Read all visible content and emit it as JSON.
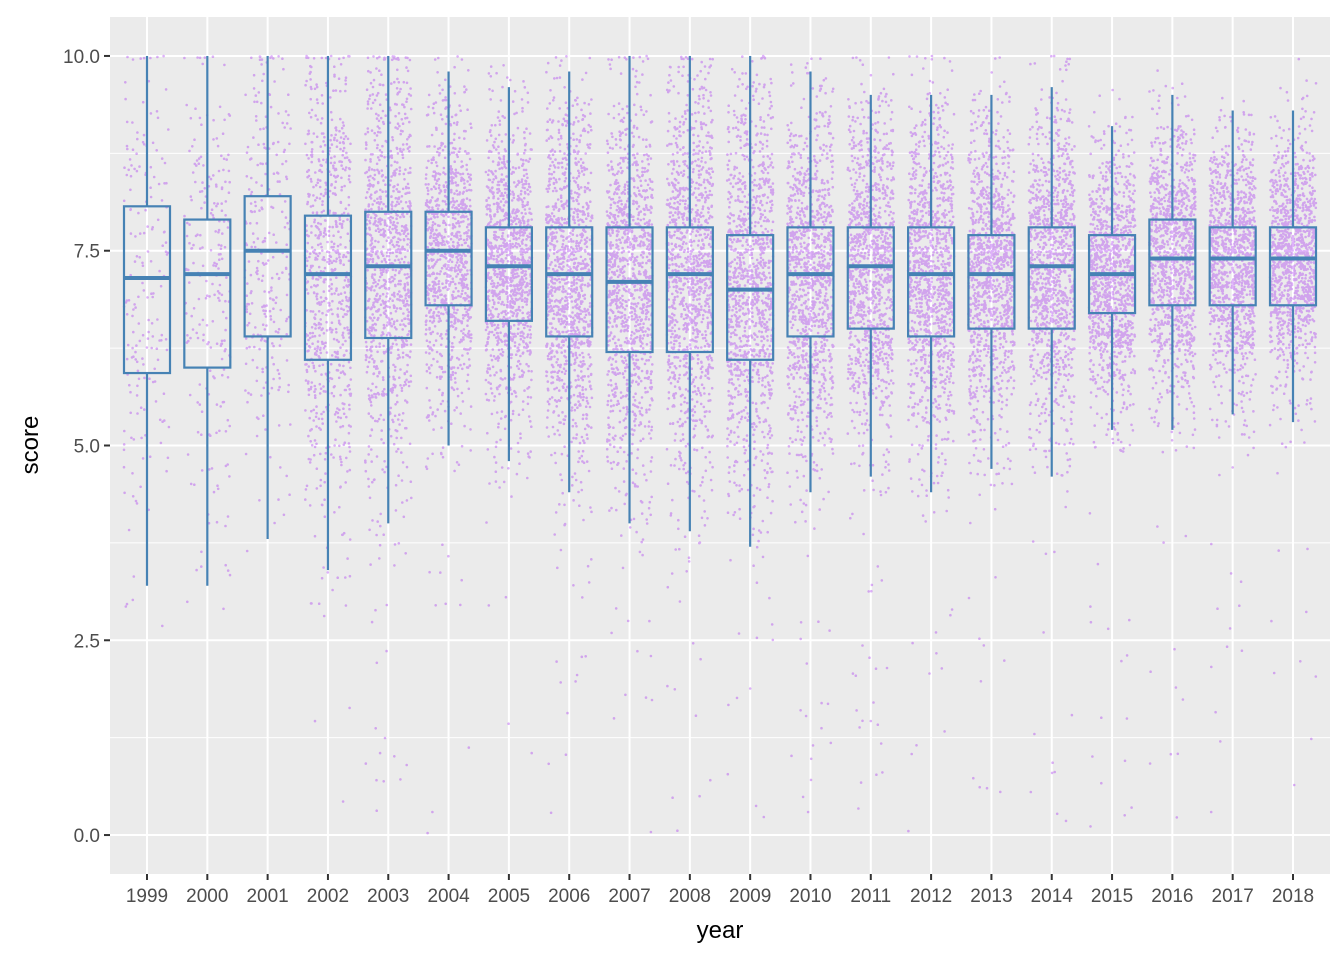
{
  "chart_data": {
    "type": "box",
    "xlabel": "year",
    "ylabel": "score",
    "xlim_categories": [
      "1999",
      "2000",
      "2001",
      "2002",
      "2003",
      "2004",
      "2005",
      "2006",
      "2007",
      "2008",
      "2009",
      "2010",
      "2011",
      "2012",
      "2013",
      "2014",
      "2015",
      "2016",
      "2017",
      "2018"
    ],
    "ylim": [
      -0.5,
      10.5
    ],
    "y_ticks": [
      "0.0",
      "2.5",
      "5.0",
      "7.5",
      "10.0"
    ],
    "y_tick_values": [
      0,
      2.5,
      5,
      7.5,
      10
    ],
    "grid": true,
    "colors": {
      "panel": "#ebebeb",
      "grid": "#ffffff",
      "box": "#4682b4",
      "points": "#a020f0"
    },
    "boxes": [
      {
        "year": "1999",
        "whisker_low": 3.2,
        "q1": 5.93,
        "median": 7.15,
        "q3": 8.07,
        "whisker_high": 10.0,
        "n": 180
      },
      {
        "year": "2000",
        "whisker_low": 3.2,
        "q1": 6.0,
        "median": 7.2,
        "q3": 7.9,
        "whisker_high": 10.0,
        "n": 220
      },
      {
        "year": "2001",
        "whisker_low": 3.8,
        "q1": 6.4,
        "median": 7.5,
        "q3": 8.2,
        "whisker_high": 10.0,
        "n": 260
      },
      {
        "year": "2002",
        "whisker_low": 3.4,
        "q1": 6.1,
        "median": 7.2,
        "q3": 7.95,
        "whisker_high": 10.0,
        "n": 750
      },
      {
        "year": "2003",
        "whisker_low": 4.0,
        "q1": 6.38,
        "median": 7.3,
        "q3": 8.0,
        "whisker_high": 10.0,
        "n": 1000
      },
      {
        "year": "2004",
        "whisker_low": 5.0,
        "q1": 6.8,
        "median": 7.5,
        "q3": 8.0,
        "whisker_high": 9.8,
        "n": 1000
      },
      {
        "year": "2005",
        "whisker_low": 4.8,
        "q1": 6.6,
        "median": 7.3,
        "q3": 7.8,
        "whisker_high": 9.6,
        "n": 1150
      },
      {
        "year": "2006",
        "whisker_low": 4.4,
        "q1": 6.4,
        "median": 7.2,
        "q3": 7.8,
        "whisker_high": 9.8,
        "n": 1150
      },
      {
        "year": "2007",
        "whisker_low": 4.0,
        "q1": 6.2,
        "median": 7.1,
        "q3": 7.8,
        "whisker_high": 10.0,
        "n": 1150
      },
      {
        "year": "2008",
        "whisker_low": 3.9,
        "q1": 6.2,
        "median": 7.2,
        "q3": 7.8,
        "whisker_high": 10.0,
        "n": 1150
      },
      {
        "year": "2009",
        "whisker_low": 3.7,
        "q1": 6.1,
        "median": 7.0,
        "q3": 7.7,
        "whisker_high": 10.0,
        "n": 1150
      },
      {
        "year": "2010",
        "whisker_low": 4.4,
        "q1": 6.4,
        "median": 7.2,
        "q3": 7.8,
        "whisker_high": 9.8,
        "n": 1150
      },
      {
        "year": "2011",
        "whisker_low": 4.6,
        "q1": 6.5,
        "median": 7.3,
        "q3": 7.8,
        "whisker_high": 9.5,
        "n": 1150
      },
      {
        "year": "2012",
        "whisker_low": 4.4,
        "q1": 6.4,
        "median": 7.2,
        "q3": 7.8,
        "whisker_high": 9.5,
        "n": 1150
      },
      {
        "year": "2013",
        "whisker_low": 4.7,
        "q1": 6.5,
        "median": 7.2,
        "q3": 7.7,
        "whisker_high": 9.5,
        "n": 1150
      },
      {
        "year": "2014",
        "whisker_low": 4.6,
        "q1": 6.5,
        "median": 7.3,
        "q3": 7.8,
        "whisker_high": 9.6,
        "n": 1150
      },
      {
        "year": "2015",
        "whisker_low": 5.2,
        "q1": 6.7,
        "median": 7.2,
        "q3": 7.7,
        "whisker_high": 9.1,
        "n": 1150
      },
      {
        "year": "2016",
        "whisker_low": 5.2,
        "q1": 6.8,
        "median": 7.4,
        "q3": 7.9,
        "whisker_high": 9.5,
        "n": 1150
      },
      {
        "year": "2017",
        "whisker_low": 5.4,
        "q1": 6.8,
        "median": 7.4,
        "q3": 7.8,
        "whisker_high": 9.3,
        "n": 1150
      },
      {
        "year": "2018",
        "whisker_low": 5.3,
        "q1": 6.8,
        "median": 7.4,
        "q3": 7.8,
        "whisker_high": 9.3,
        "n": 1150
      }
    ]
  }
}
